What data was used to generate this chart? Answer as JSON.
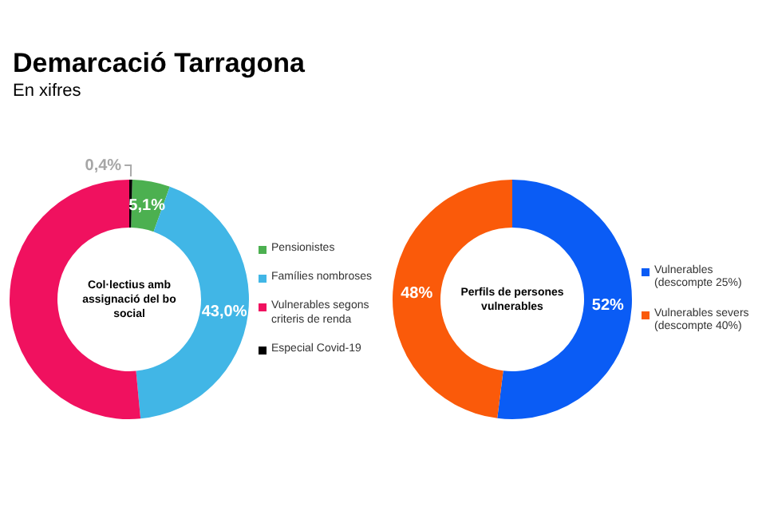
{
  "chart_data": [
    {
      "type": "donut",
      "title": "Demarcació Tarragona",
      "subtitle": "En xifres",
      "categories": [
        "Pensionistes",
        "Famílies nombroses",
        "Vulnerables segons criteris de renda",
        "Especial Covid-19"
      ],
      "values": [
        5.1,
        43.0,
        51.5,
        0.4
      ],
      "colors": [
        "#4cb050",
        "#41b6e6",
        "#f0115f",
        "#000000"
      ],
      "value_labels": [
        "5,1%",
        "43,0%",
        null,
        "0,4%"
      ],
      "annotations": [
        "Col·lectius amb assignació del bo social"
      ],
      "legend": "right"
    },
    {
      "type": "donut",
      "categories": [
        "Vulnerables (descompte 25%)",
        "Vulnerables severs (descompte 40%)"
      ],
      "values": [
        52,
        48
      ],
      "colors": [
        "#0a5cf5",
        "#fa5a0a"
      ],
      "value_labels": [
        "52%",
        "48%"
      ],
      "annotations": [
        "Perfils de persones vulnerables"
      ],
      "legend": "right"
    }
  ]
}
